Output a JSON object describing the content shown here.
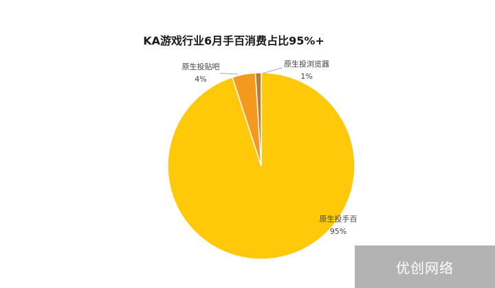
{
  "chart_data": {
    "type": "pie",
    "title": "KA游戏行业6月手百消费占比95%+",
    "slices": [
      {
        "label": "原生投手百",
        "value": 95,
        "value_label": "95%",
        "color": "#FFC90A"
      },
      {
        "label": "原生投贴吧",
        "value": 4,
        "value_label": "4%",
        "color": "#F39A1E"
      },
      {
        "label": "原生投浏览器",
        "value": 1,
        "value_label": "1%",
        "color": "#C07A2F"
      }
    ],
    "legend": "none"
  },
  "watermark": "优创网络"
}
